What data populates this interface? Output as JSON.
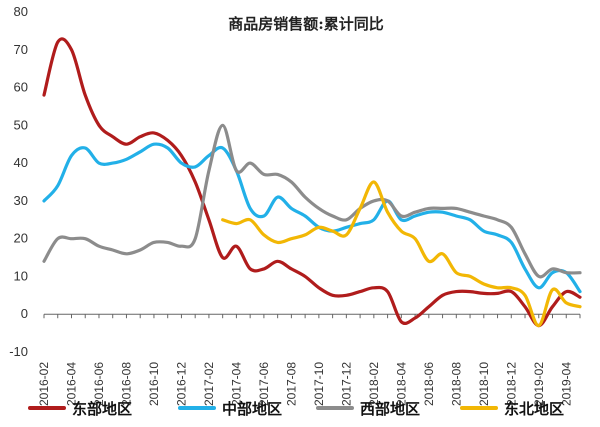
{
  "chart_data": {
    "type": "line",
    "title": "商品房销售额:累计同比",
    "xlabel": "",
    "ylabel": "",
    "ylim": [
      -10,
      80
    ],
    "yticks": [
      -10,
      0,
      10,
      20,
      30,
      40,
      50,
      60,
      70,
      80
    ],
    "x_tick_labels": [
      "2016-02",
      "2016-04",
      "2016-06",
      "2016-08",
      "2016-10",
      "2016-12",
      "2017-02",
      "2017-04",
      "2017-06",
      "2017-08",
      "2017-10",
      "2017-12",
      "2018-02",
      "2018-04",
      "2018-06",
      "2018-08",
      "2018-10",
      "2018-12",
      "2019-02",
      "2019-04"
    ],
    "grid": false,
    "legend_position": "bottom",
    "categories": [
      "2016-02",
      "2016-03",
      "2016-04",
      "2016-05",
      "2016-06",
      "2016-07",
      "2016-08",
      "2016-09",
      "2016-10",
      "2016-11",
      "2016-12",
      "2017-01",
      "2017-02",
      "2017-03",
      "2017-04",
      "2017-05",
      "2017-06",
      "2017-07",
      "2017-08",
      "2017-09",
      "2017-10",
      "2017-11",
      "2017-12",
      "2018-01",
      "2018-02",
      "2018-03",
      "2018-04",
      "2018-05",
      "2018-06",
      "2018-07",
      "2018-08",
      "2018-09",
      "2018-10",
      "2018-11",
      "2018-12",
      "2019-01",
      "2019-02",
      "2019-03",
      "2019-04",
      "2019-05"
    ],
    "series": [
      {
        "name": "东部地区",
        "color": "#b01c1c",
        "values": [
          58,
          72,
          70,
          58,
          50,
          47,
          45,
          47,
          48,
          46,
          42,
          35,
          25,
          15,
          18,
          12,
          12,
          14,
          12,
          10,
          7,
          5,
          5,
          6,
          7,
          6,
          -2,
          -1,
          2,
          5,
          6,
          6,
          5.5,
          5.5,
          6,
          2,
          -3,
          2,
          6,
          4.5
        ]
      },
      {
        "name": "中部地区",
        "color": "#22b0e8",
        "values": [
          30,
          34,
          42,
          44,
          40,
          40,
          41,
          43,
          45,
          44,
          40,
          39,
          42,
          44,
          38,
          28,
          26,
          31,
          28,
          26,
          23,
          22,
          23,
          24,
          25,
          30,
          25,
          26,
          27,
          27,
          26,
          25,
          22,
          21,
          19,
          12,
          7,
          11,
          11,
          6
        ]
      },
      {
        "name": "西部地区",
        "color": "#8c8c8c",
        "values": [
          14,
          20,
          20,
          20,
          18,
          17,
          16,
          17,
          19,
          19,
          18,
          20,
          38,
          50,
          38,
          40,
          37,
          37,
          35,
          31,
          28,
          26,
          25,
          28,
          30,
          30,
          26,
          27,
          28,
          28,
          28,
          27,
          26,
          25,
          23,
          16,
          10,
          12,
          11,
          11
        ]
      },
      {
        "name": "东北地区",
        "color": "#f2b705",
        "values": [
          null,
          null,
          null,
          null,
          null,
          null,
          null,
          null,
          null,
          null,
          null,
          null,
          null,
          25,
          24,
          25,
          21,
          19,
          20,
          21,
          23,
          22,
          21,
          28,
          35,
          27,
          22,
          20,
          14,
          16,
          11,
          10,
          8,
          7,
          7,
          5,
          -3,
          6.5,
          3,
          2
        ]
      }
    ]
  }
}
